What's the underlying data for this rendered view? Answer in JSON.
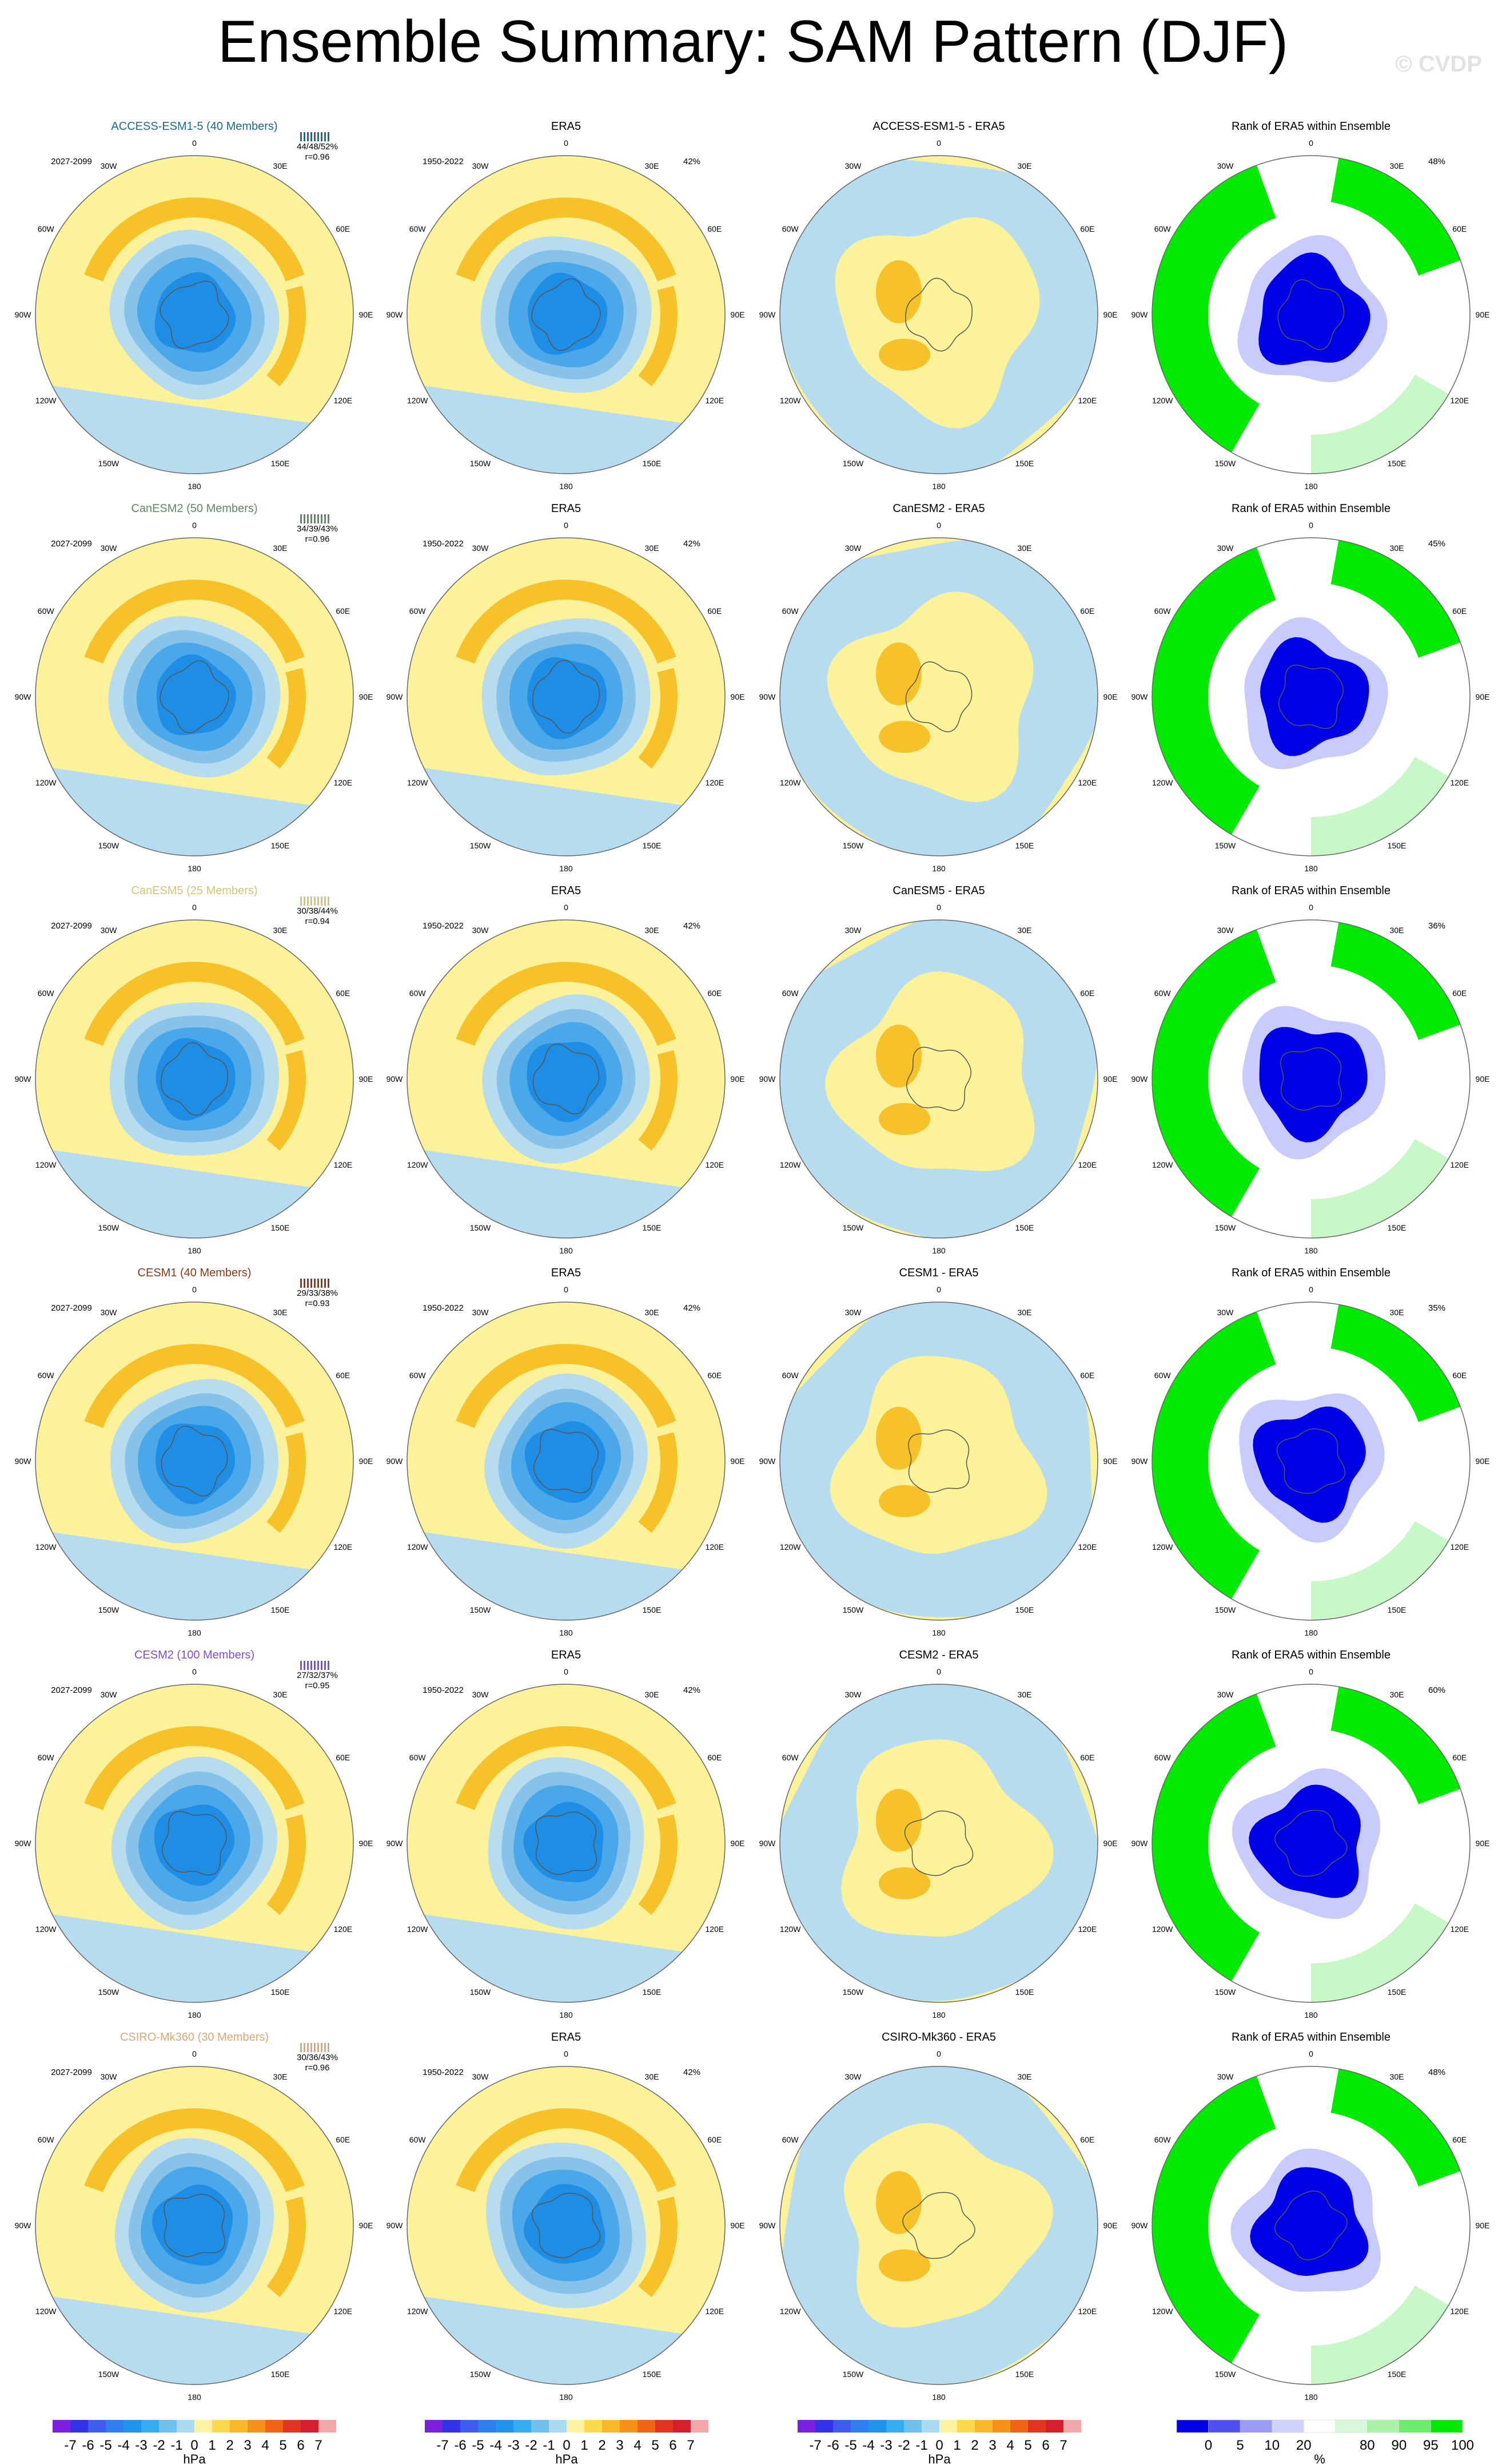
{
  "title": "Ensemble Summary: SAM Pattern (DJF)",
  "watermark": "© CVDP",
  "colors": {
    "pos1": "#fbf29a",
    "pos2": "#f7c12a",
    "neg1": "#b7dcef",
    "neg2": "#86c2ea",
    "neg3": "#4aa8ea",
    "neg4": "#1f8de4",
    "rank_blue": "#0000e6",
    "rank_lightblue": "#c9cbff",
    "rank_green": "#00ea00",
    "rank_lightgreen": "#c8f8c8"
  },
  "longitude_labels": [
    "0",
    "30E",
    "60E",
    "90E",
    "120E",
    "150E",
    "180",
    "150W",
    "120W",
    "90W",
    "60W",
    "30W"
  ],
  "rows": [
    {
      "model": "ACCESS-ESM1-5 (40 Members)",
      "model_color": "#1d6b8a",
      "period": "2027-2099",
      "stats": "44/48/52%",
      "corr": "r=0.96",
      "ref_title": "ERA5",
      "ref_period": "1950-2022",
      "ref_pct": "42%",
      "diff_title": "ACCESS-ESM1-5 - ERA5",
      "rank_title": "Rank of ERA5 within Ensemble",
      "rank_pct": "48%"
    },
    {
      "model": "CanESM2 (50 Members)",
      "model_color": "#5e8a63",
      "period": "2027-2099",
      "stats": "34/39/43%",
      "corr": "r=0.96",
      "ref_title": "ERA5",
      "ref_period": "1950-2022",
      "ref_pct": "42%",
      "diff_title": "CanESM2 - ERA5",
      "rank_title": "Rank of ERA5 within Ensemble",
      "rank_pct": "45%"
    },
    {
      "model": "CanESM5 (25 Members)",
      "model_color": "#d4c478",
      "period": "2027-2099",
      "stats": "30/38/44%",
      "corr": "r=0.94",
      "ref_title": "ERA5",
      "ref_period": "1950-2022",
      "ref_pct": "42%",
      "diff_title": "CanESM5 - ERA5",
      "rank_title": "Rank of ERA5 within Ensemble",
      "rank_pct": "36%"
    },
    {
      "model": "CESM1 (40 Members)",
      "model_color": "#8b3a1a",
      "period": "2027-2099",
      "stats": "29/33/38%",
      "corr": "r=0.93",
      "ref_title": "ERA5",
      "ref_period": "1950-2022",
      "ref_pct": "42%",
      "diff_title": "CESM1 - ERA5",
      "rank_title": "Rank of ERA5 within Ensemble",
      "rank_pct": "35%"
    },
    {
      "model": "CESM2 (100 Members)",
      "model_color": "#7c4fd4",
      "period": "2027-2099",
      "stats": "27/32/37%",
      "corr": "r=0.95",
      "ref_title": "ERA5",
      "ref_period": "1950-2022",
      "ref_pct": "42%",
      "diff_title": "CESM2 - ERA5",
      "rank_title": "Rank of ERA5 within Ensemble",
      "rank_pct": "60%"
    },
    {
      "model": "CSIRO-Mk360 (30 Members)",
      "model_color": "#d9a77a",
      "period": "2027-2099",
      "stats": "30/36/43%",
      "corr": "r=0.96",
      "ref_title": "ERA5",
      "ref_period": "1950-2022",
      "ref_pct": "42%",
      "diff_title": "CSIRO-Mk360 - ERA5",
      "rank_title": "Rank of ERA5 within Ensemble",
      "rank_pct": "48%"
    }
  ],
  "colorbars": {
    "hpa_labels": [
      "-7",
      "-6",
      "-5",
      "-4",
      "-3",
      "-2",
      "-1",
      "0",
      "1",
      "2",
      "3",
      "4",
      "5",
      "6",
      "7"
    ],
    "hpa_colors": [
      "#7b1fe0",
      "#3232e8",
      "#3d5df0",
      "#2f7ef0",
      "#1e95ea",
      "#34acf0",
      "#6fc2ee",
      "#a9dbf2",
      "#fdf3a0",
      "#fdd94d",
      "#f9b82a",
      "#f79218",
      "#f06414",
      "#e2351f",
      "#d61e2c",
      "#f2a8a8"
    ],
    "hpa_unit": "hPa",
    "rank_labels": [
      "0",
      "5",
      "10",
      "20",
      "80",
      "90",
      "95",
      "100"
    ],
    "rank_colors": [
      "#0000e6",
      "#5050f0",
      "#9a9cf7",
      "#d0d2fb",
      "#ffffff",
      "#d9f8d9",
      "#a8f3a8",
      "#6cec6c",
      "#00ea00"
    ],
    "rank_unit": "%"
  }
}
